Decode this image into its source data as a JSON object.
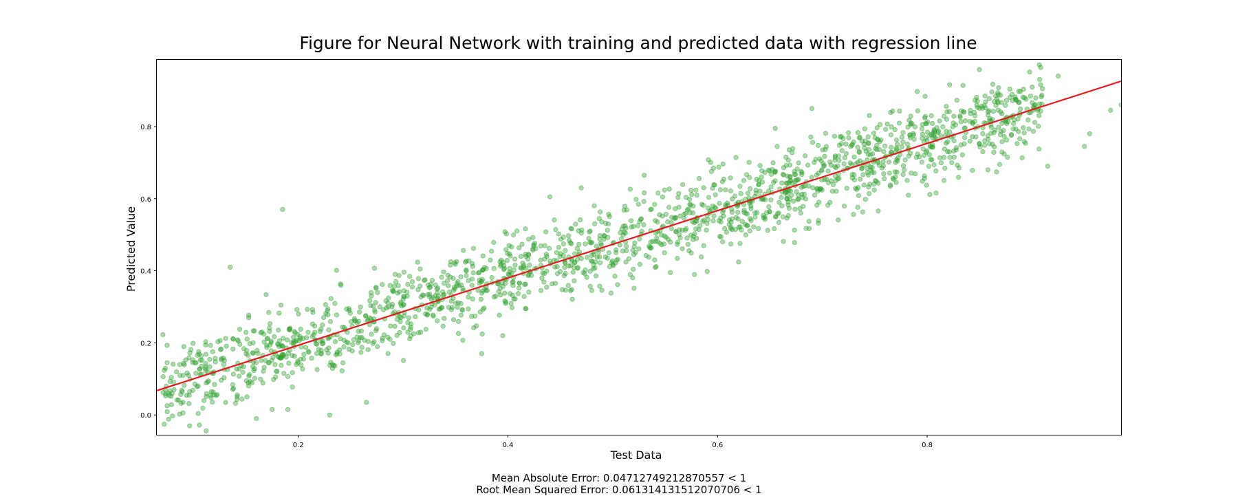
{
  "chart_data": {
    "type": "scatter",
    "title": "Figure for Neural Network with training and predicted data with regression line",
    "xlabel": "Test Data",
    "ylabel": "Predicted Value",
    "xlim": [
      0.065,
      0.985
    ],
    "ylim": [
      -0.055,
      0.985
    ],
    "x_ticks": [
      0.2,
      0.4,
      0.6,
      0.8
    ],
    "x_tick_labels": [
      "0.2",
      "0.4",
      "0.6",
      "0.8"
    ],
    "y_ticks": [
      0.0,
      0.2,
      0.4,
      0.6,
      0.8
    ],
    "y_tick_labels": [
      "0.0",
      "0.2",
      "0.4",
      "0.6",
      "0.8"
    ],
    "grid": false,
    "series": [
      {
        "color": "#2ca02c",
        "alpha": 0.4,
        "point_count": 1800,
        "points": [
          [
            0.185,
            0.57
          ],
          [
            0.135,
            0.41
          ],
          [
            0.69,
            0.85
          ],
          [
            0.655,
            0.795
          ],
          [
            0.925,
            0.94
          ],
          [
            0.91,
            0.905
          ],
          [
            0.975,
            0.845
          ],
          [
            0.985,
            0.86
          ],
          [
            0.955,
            0.78
          ],
          [
            0.95,
            0.745
          ],
          [
            0.915,
            0.69
          ],
          [
            0.44,
            0.605
          ],
          [
            0.23,
            0.0
          ],
          [
            0.16,
            -0.01
          ],
          [
            0.265,
            0.035
          ],
          [
            0.11,
            0.04
          ],
          [
            0.09,
            0.035
          ],
          [
            0.175,
            0.015
          ],
          [
            0.19,
            0.015
          ],
          [
            0.54,
            0.43
          ],
          [
            0.395,
            0.22
          ],
          [
            0.375,
            0.17
          ],
          [
            0.47,
            0.63
          ],
          [
            0.53,
            0.665
          ]
        ]
      },
      {
        "type": "line",
        "color": "#e8191b",
        "slope": 0.933,
        "intercept": 0.0068
      }
    ]
  },
  "metrics": {
    "mae": "Mean Absolute Error: 0.04712749212870557 < 1",
    "rmse": "Root Mean Squared Error: 0.061314131512070706 < 1"
  }
}
